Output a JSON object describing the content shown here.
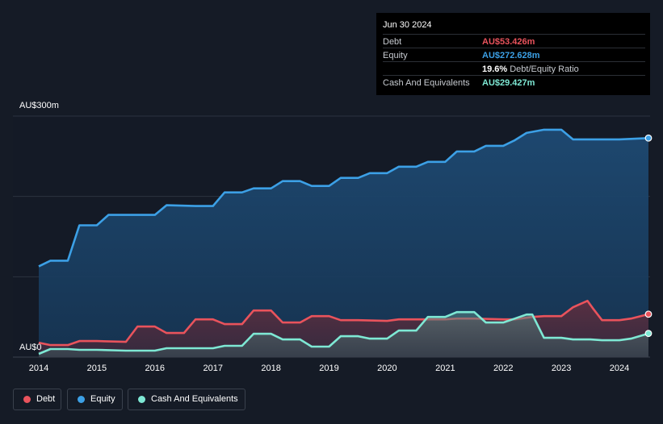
{
  "tooltip": {
    "date": "Jun 30 2024",
    "rows": [
      {
        "label": "Debt",
        "value": "AU$53.426m",
        "color": "#e9535c"
      },
      {
        "label": "Equity",
        "value": "AU$272.628m",
        "color": "#3ca0e6"
      },
      {
        "label": "",
        "value": "19.6%",
        "extra": "Debt/Equity Ratio"
      },
      {
        "label": "Cash And Equivalents",
        "value": "AU$29.427m",
        "color": "#7ee8d4"
      }
    ]
  },
  "legend": [
    {
      "label": "Debt",
      "color": "#e9535c"
    },
    {
      "label": "Equity",
      "color": "#3ca0e6"
    },
    {
      "label": "Cash And Equivalents",
      "color": "#7ee8d4"
    }
  ],
  "chart_data": {
    "type": "area",
    "y_axis_labels": [
      "AU$300m",
      "AU$0"
    ],
    "ylim": [
      0,
      300
    ],
    "unit": "AU$m",
    "x_ticks": [
      "2014",
      "2015",
      "2016",
      "2017",
      "2018",
      "2019",
      "2020",
      "2021",
      "2022",
      "2023",
      "2024"
    ],
    "xlim": [
      2014.0,
      2024.5
    ],
    "series": [
      {
        "name": "Equity",
        "color": "#3ca0e6",
        "points": [
          [
            2014.0,
            113
          ],
          [
            2014.2,
            120
          ],
          [
            2014.5,
            120
          ],
          [
            2014.7,
            164
          ],
          [
            2015.0,
            164
          ],
          [
            2015.2,
            177
          ],
          [
            2015.5,
            177
          ],
          [
            2016.0,
            177
          ],
          [
            2016.2,
            189
          ],
          [
            2016.7,
            188
          ],
          [
            2017.0,
            188
          ],
          [
            2017.2,
            205
          ],
          [
            2017.5,
            205
          ],
          [
            2017.7,
            210
          ],
          [
            2018.0,
            210
          ],
          [
            2018.2,
            219
          ],
          [
            2018.5,
            219
          ],
          [
            2018.7,
            213
          ],
          [
            2019.0,
            213
          ],
          [
            2019.2,
            223
          ],
          [
            2019.5,
            223
          ],
          [
            2019.7,
            229
          ],
          [
            2020.0,
            229
          ],
          [
            2020.2,
            237
          ],
          [
            2020.5,
            237
          ],
          [
            2020.7,
            243
          ],
          [
            2021.0,
            243
          ],
          [
            2021.2,
            256
          ],
          [
            2021.5,
            256
          ],
          [
            2021.7,
            263
          ],
          [
            2022.0,
            263
          ],
          [
            2022.2,
            270
          ],
          [
            2022.4,
            279
          ],
          [
            2022.7,
            283
          ],
          [
            2023.0,
            283
          ],
          [
            2023.2,
            271
          ],
          [
            2023.5,
            271
          ],
          [
            2024.0,
            271
          ],
          [
            2024.5,
            272.628
          ]
        ]
      },
      {
        "name": "Debt",
        "color": "#e9535c",
        "points": [
          [
            2014.0,
            18
          ],
          [
            2014.2,
            15
          ],
          [
            2014.5,
            15
          ],
          [
            2014.7,
            20
          ],
          [
            2015.0,
            20
          ],
          [
            2015.5,
            19
          ],
          [
            2015.7,
            38
          ],
          [
            2016.0,
            38
          ],
          [
            2016.2,
            30
          ],
          [
            2016.5,
            30
          ],
          [
            2016.7,
            47
          ],
          [
            2017.0,
            47
          ],
          [
            2017.2,
            41
          ],
          [
            2017.5,
            41
          ],
          [
            2017.7,
            58
          ],
          [
            2018.0,
            58
          ],
          [
            2018.2,
            43
          ],
          [
            2018.5,
            43
          ],
          [
            2018.7,
            51
          ],
          [
            2019.0,
            51
          ],
          [
            2019.2,
            46
          ],
          [
            2019.5,
            46
          ],
          [
            2020.0,
            45
          ],
          [
            2020.2,
            47
          ],
          [
            2020.5,
            47
          ],
          [
            2021.0,
            47
          ],
          [
            2021.2,
            48
          ],
          [
            2021.5,
            48
          ],
          [
            2022.0,
            47
          ],
          [
            2022.2,
            47
          ],
          [
            2022.5,
            50
          ],
          [
            2022.7,
            51
          ],
          [
            2023.0,
            51
          ],
          [
            2023.2,
            62
          ],
          [
            2023.45,
            70
          ],
          [
            2023.55,
            60
          ],
          [
            2023.7,
            46
          ],
          [
            2024.0,
            46
          ],
          [
            2024.2,
            48
          ],
          [
            2024.5,
            53.426
          ]
        ]
      },
      {
        "name": "Cash And Equivalents",
        "color": "#7ee8d4",
        "points": [
          [
            2014.0,
            4
          ],
          [
            2014.2,
            10
          ],
          [
            2014.5,
            10
          ],
          [
            2014.7,
            9
          ],
          [
            2015.0,
            9
          ],
          [
            2015.5,
            8
          ],
          [
            2016.0,
            8
          ],
          [
            2016.2,
            11
          ],
          [
            2016.5,
            11
          ],
          [
            2017.0,
            11
          ],
          [
            2017.2,
            14
          ],
          [
            2017.5,
            14
          ],
          [
            2017.7,
            29
          ],
          [
            2018.0,
            29
          ],
          [
            2018.2,
            22
          ],
          [
            2018.5,
            22
          ],
          [
            2018.7,
            13
          ],
          [
            2019.0,
            13
          ],
          [
            2019.2,
            26
          ],
          [
            2019.5,
            26
          ],
          [
            2019.7,
            23
          ],
          [
            2020.0,
            23
          ],
          [
            2020.2,
            33
          ],
          [
            2020.5,
            33
          ],
          [
            2020.7,
            50
          ],
          [
            2021.0,
            50
          ],
          [
            2021.2,
            56
          ],
          [
            2021.5,
            56
          ],
          [
            2021.7,
            43
          ],
          [
            2022.0,
            43
          ],
          [
            2022.2,
            48
          ],
          [
            2022.4,
            53
          ],
          [
            2022.5,
            53
          ],
          [
            2022.7,
            24
          ],
          [
            2023.0,
            24
          ],
          [
            2023.2,
            22
          ],
          [
            2023.5,
            22
          ],
          [
            2023.7,
            21
          ],
          [
            2024.0,
            21
          ],
          [
            2024.2,
            23
          ],
          [
            2024.5,
            29.427
          ]
        ]
      }
    ]
  }
}
